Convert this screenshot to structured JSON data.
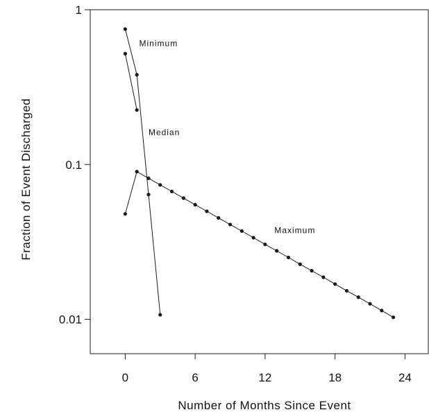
{
  "chart_data": {
    "type": "line",
    "xlabel": "Number of Months Since Event",
    "ylabel": "Fraction of Event Discharged",
    "xlim": [
      -3,
      26
    ],
    "ylim": [
      0.006,
      1
    ],
    "yscale": "log",
    "x_ticks": [
      0,
      6,
      12,
      18,
      24
    ],
    "y_ticks": [
      0.01,
      0.1,
      1
    ],
    "y_tick_labels": [
      "0.01",
      "0.1",
      "1"
    ],
    "grid": false,
    "annotations": [
      {
        "text": "Minimum",
        "x": 1.2,
        "y": 0.58
      },
      {
        "text": "Median",
        "x": 2.0,
        "y": 0.155
      },
      {
        "text": "Maximum",
        "x": 12.8,
        "y": 0.036
      }
    ],
    "series": [
      {
        "x": [
          0,
          1,
          2,
          3
        ],
        "y": [
          0.75,
          0.38,
          0.064,
          0.0107
        ]
      },
      {
        "x": [
          0,
          1
        ],
        "y": [
          0.52,
          0.225
        ]
      },
      {
        "x": [
          0,
          1,
          2,
          3,
          4,
          5,
          6,
          7,
          8,
          9,
          10,
          11,
          12,
          13,
          14,
          15,
          16,
          17,
          18,
          19,
          20,
          21,
          22,
          23
        ],
        "y": [
          0.048,
          0.09,
          0.0815,
          0.0739,
          0.067,
          0.0607,
          0.055,
          0.0499,
          0.0452,
          0.041,
          0.0372,
          0.0337,
          0.0305,
          0.0277,
          0.0251,
          0.0227,
          0.0206,
          0.0187,
          0.0169,
          0.0153,
          0.0139,
          0.0126,
          0.0114,
          0.0103
        ]
      }
    ],
    "colors": {
      "line": "#1a1a1a",
      "marker": "#1a1a1a",
      "axis": "#1a1a1a"
    }
  }
}
